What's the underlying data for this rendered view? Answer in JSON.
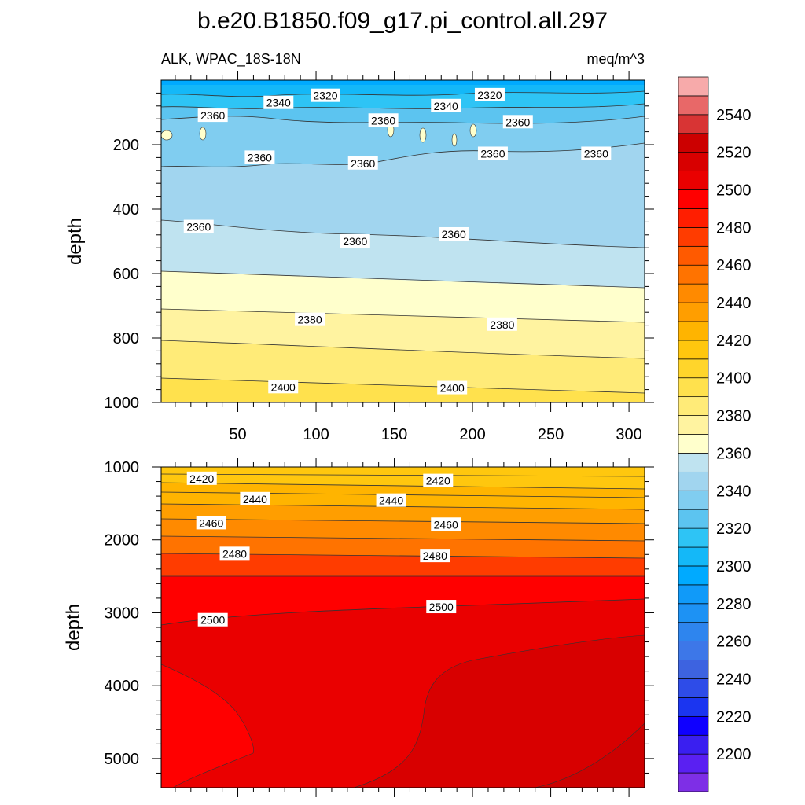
{
  "chart_data": {
    "type": "contour",
    "title": "b.e20.B1850.f09_g17.pi_control.all.297",
    "variable_label": "ALK, WPAC_18S-18N",
    "units": "meq/m^3",
    "x": {
      "range": [
        1,
        310
      ],
      "ticks": [
        50,
        100,
        150,
        200,
        250,
        300
      ],
      "tick_labels": [
        "50",
        "100",
        "150",
        "200",
        "250",
        "300"
      ]
    },
    "panels": [
      {
        "name": "upper",
        "ylabel": "depth",
        "y_range": [
          0,
          1000
        ],
        "y_ticks": [
          200,
          400,
          600,
          800,
          1000
        ],
        "y_tick_labels": [
          "200",
          "400",
          "600",
          "800",
          "1000"
        ],
        "contour_labels": [
          {
            "text": "2340",
            "x": 76,
            "depth": 70
          },
          {
            "text": "2320",
            "x": 106,
            "depth": 48
          },
          {
            "text": "2360",
            "x": 34,
            "depth": 110
          },
          {
            "text": "2360",
            "x": 143,
            "depth": 125
          },
          {
            "text": "2340",
            "x": 183,
            "depth": 80
          },
          {
            "text": "2320",
            "x": 211,
            "depth": 46
          },
          {
            "text": "2360",
            "x": 229,
            "depth": 130
          },
          {
            "text": "2360",
            "x": 64,
            "depth": 240
          },
          {
            "text": "2360",
            "x": 130,
            "depth": 258
          },
          {
            "text": "2360",
            "x": 213,
            "depth": 228
          },
          {
            "text": "2360",
            "x": 279,
            "depth": 228
          },
          {
            "text": "2360",
            "x": 25,
            "depth": 455
          },
          {
            "text": "2360",
            "x": 125,
            "depth": 500
          },
          {
            "text": "2360",
            "x": 188,
            "depth": 478
          },
          {
            "text": "2380",
            "x": 96,
            "depth": 743
          },
          {
            "text": "2380",
            "x": 219,
            "depth": 758
          },
          {
            "text": "2400",
            "x": 79,
            "depth": 952
          },
          {
            "text": "2400",
            "x": 187,
            "depth": 955
          }
        ]
      },
      {
        "name": "lower",
        "ylabel": "depth",
        "y_range": [
          1000,
          5400
        ],
        "y_ticks": [
          1000,
          2000,
          3000,
          4000,
          5000
        ],
        "y_tick_labels": [
          "1000",
          "2000",
          "3000",
          "4000",
          "5000"
        ],
        "contour_labels": [
          {
            "text": "2420",
            "x": 27,
            "depth": 1160
          },
          {
            "text": "2420",
            "x": 178,
            "depth": 1190
          },
          {
            "text": "2440",
            "x": 61,
            "depth": 1440
          },
          {
            "text": "2440",
            "x": 148,
            "depth": 1460
          },
          {
            "text": "2460",
            "x": 33,
            "depth": 1770
          },
          {
            "text": "2460",
            "x": 183,
            "depth": 1790
          },
          {
            "text": "2480",
            "x": 48,
            "depth": 2190
          },
          {
            "text": "2480",
            "x": 176,
            "depth": 2220
          },
          {
            "text": "2500",
            "x": 34,
            "depth": 3100
          },
          {
            "text": "2500",
            "x": 180,
            "depth": 2920
          }
        ]
      }
    ],
    "colorbar": {
      "levels": [
        2190,
        2200,
        2210,
        2220,
        2230,
        2240,
        2250,
        2260,
        2270,
        2280,
        2290,
        2300,
        2310,
        2320,
        2330,
        2340,
        2350,
        2360,
        2370,
        2380,
        2390,
        2400,
        2410,
        2420,
        2430,
        2440,
        2450,
        2460,
        2470,
        2480,
        2490,
        2500,
        2510,
        2520,
        2530,
        2540,
        2550
      ],
      "tick_labels": [
        "2200",
        "2220",
        "2240",
        "2260",
        "2280",
        "2300",
        "2320",
        "2340",
        "2360",
        "2380",
        "2400",
        "2420",
        "2440",
        "2460",
        "2480",
        "2500",
        "2520",
        "2540"
      ],
      "colors": [
        "#7e2fe6",
        "#5a20f2",
        "#3a1ff0",
        "#0f00ff",
        "#1b35f0",
        "#2e4ce8",
        "#3d63e0",
        "#3d77e8",
        "#2e85ee",
        "#1d92f4",
        "#109af9",
        "#00aaff",
        "#14b8f8",
        "#2ec4f5",
        "#5cc4f0",
        "#80cdf0",
        "#a1d5ef",
        "#bfe3f0",
        "#ffffcc",
        "#fff3a0",
        "#ffeb78",
        "#ffe14d",
        "#ffd52b",
        "#ffc70e",
        "#ffb400",
        "#ff9e00",
        "#ff8a00",
        "#ff7300",
        "#ff5a00",
        "#ff3c00",
        "#ff1e00",
        "#ff0000",
        "#ea0000",
        "#d80000",
        "#cc0000",
        "#d83434",
        "#e86868",
        "#f7aaaa"
      ]
    }
  }
}
